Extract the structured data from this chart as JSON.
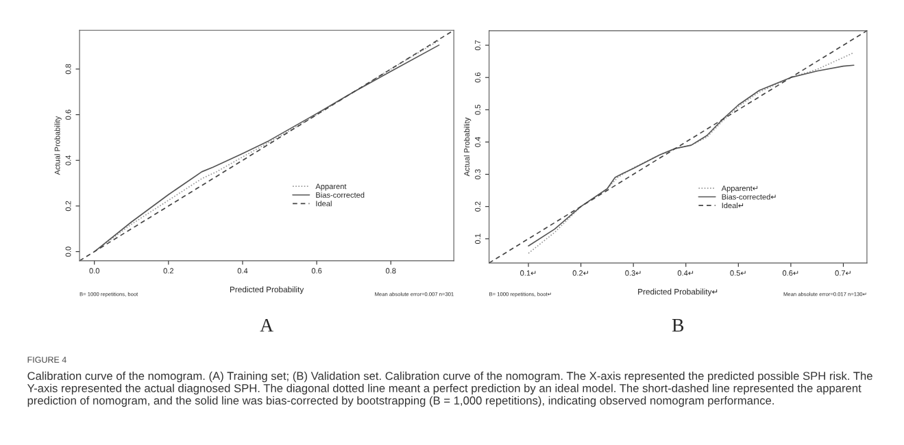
{
  "chart_data": [
    {
      "type": "line",
      "xlabel": "Predicted Probability",
      "ylabel": "Actual Probability",
      "xlim": [
        -0.04,
        0.97
      ],
      "ylim": [
        -0.04,
        0.97
      ],
      "xticks": [
        {
          "value": 0,
          "label": "0.0"
        },
        0.2,
        0.4,
        0.6,
        0.8
      ],
      "yticks": [
        {
          "value": 0,
          "label": "0.0"
        },
        0.2,
        0.4,
        0.6,
        0.8
      ],
      "grid": false,
      "legend": "lower right",
      "annotations": [
        "B= 1000 repetitions, boot",
        "Mean absolute error=0.007 n=301",
        "A"
      ],
      "series": [
        {
          "name": "Apparent",
          "color": "#999999",
          "line_style": "dotted",
          "x": [
            0,
            0.1,
            0.2,
            0.29,
            0.33,
            0.4,
            0.5,
            0.6,
            0.7,
            0.8,
            0.93
          ],
          "values": [
            0,
            0.12,
            0.225,
            0.32,
            0.35,
            0.415,
            0.505,
            0.6,
            0.7,
            0.8,
            0.925
          ]
        },
        {
          "name": "Bias-corrected",
          "color": "#555555",
          "line_style": "solid",
          "x": [
            0,
            0.1,
            0.2,
            0.29,
            0.32,
            0.4,
            0.47,
            0.6,
            0.7,
            0.8,
            0.93
          ],
          "values": [
            0,
            0.13,
            0.25,
            0.35,
            0.37,
            0.43,
            0.485,
            0.605,
            0.7,
            0.79,
            0.905
          ]
        },
        {
          "name": "Ideal",
          "color": "#444444",
          "line_style": "dashed",
          "x": [
            -0.04,
            0.97
          ],
          "values": [
            -0.04,
            0.97
          ]
        }
      ]
    },
    {
      "type": "line",
      "xlabel": "Predicted Probability↵",
      "ylabel": "Actual Probability",
      "xlim": [
        0.025,
        0.745
      ],
      "ylim": [
        0.025,
        0.745
      ],
      "xticks": [
        {
          "value": 0.1,
          "label": "0.1↵"
        },
        {
          "value": 0.2,
          "label": "0.2↵"
        },
        {
          "value": 0.3,
          "label": "0.3↵"
        },
        {
          "value": 0.4,
          "label": "0.4↵"
        },
        {
          "value": 0.5,
          "label": "0.5↵"
        },
        {
          "value": 0.6,
          "label": "0.6↵"
        },
        {
          "value": 0.7,
          "label": "0.7↵"
        }
      ],
      "yticks": [
        0.1,
        0.2,
        0.3,
        0.4,
        0.5,
        0.6,
        0.7
      ],
      "grid": false,
      "legend": "lower right",
      "annotations": [
        "B= 1000 repetitions, boot↵",
        "Mean absolute error=0.017 n=130↵",
        "B",
        "FIGURE 4",
        "Calibration curve of the nomogram. (A) Training set; (B) Validation set. Calibration curve of the nomogram. The X-axis represented the predicted possible SPH risk. The Y-axis represented the actual diagnosed SPH. The diagonal dotted line meant a perfect prediction by an ideal model. The short-dashed line represented the apparent prediction of nomogram, and the solid line was bias-corrected by bootstrapping (B = 1,000 repetitions), indicating observed nomogram performance."
      ],
      "series": [
        {
          "name": "Apparent↵",
          "color": "#999999",
          "line_style": "dotted",
          "x": [
            0.1,
            0.15,
            0.2,
            0.25,
            0.27,
            0.3,
            0.35,
            0.38,
            0.41,
            0.44,
            0.47,
            0.5,
            0.54,
            0.6,
            0.65,
            0.72
          ],
          "values": [
            0.055,
            0.12,
            0.2,
            0.255,
            0.29,
            0.32,
            0.36,
            0.38,
            0.39,
            0.415,
            0.465,
            0.51,
            0.555,
            0.6,
            0.625,
            0.677
          ]
        },
        {
          "name": "Bias-corrected↵",
          "color": "#555555",
          "line_style": "solid",
          "x": [
            0.1,
            0.15,
            0.2,
            0.25,
            0.265,
            0.28,
            0.3,
            0.35,
            0.38,
            0.41,
            0.44,
            0.47,
            0.5,
            0.54,
            0.6,
            0.65,
            0.7,
            0.72
          ],
          "values": [
            0.078,
            0.13,
            0.2,
            0.255,
            0.29,
            0.303,
            0.318,
            0.36,
            0.38,
            0.39,
            0.42,
            0.47,
            0.515,
            0.56,
            0.6,
            0.62,
            0.635,
            0.638
          ]
        },
        {
          "name": "Ideal↵",
          "color": "#444444",
          "line_style": "dashed",
          "x": [
            0.025,
            0.745
          ],
          "values": [
            0.025,
            0.745
          ]
        }
      ]
    }
  ]
}
